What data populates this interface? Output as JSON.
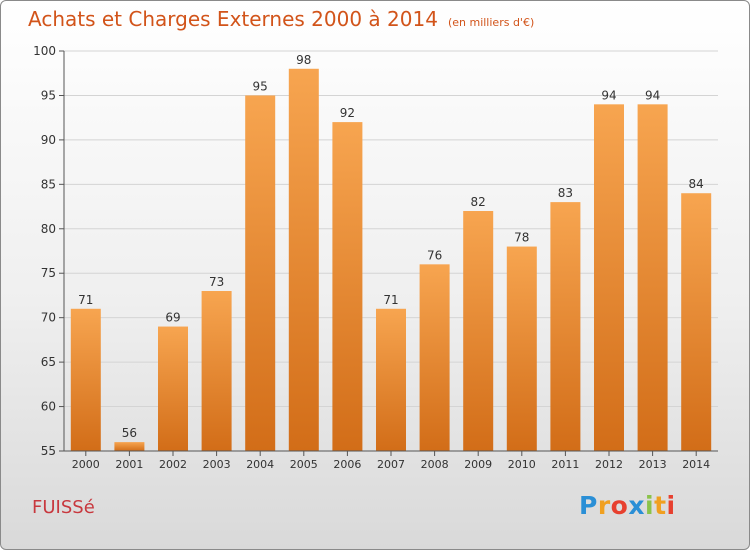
{
  "header": {
    "title": "Achats et Charges Externes 2000 à 2014",
    "subtitle": "(en milliers d'€)"
  },
  "footer": {
    "commune": "FUISSé",
    "logo_letters": [
      "P",
      "r",
      "o",
      "x",
      "i",
      "t",
      "i"
    ]
  },
  "chart_data": {
    "type": "bar",
    "categories": [
      "2000",
      "2001",
      "2002",
      "2003",
      "2004",
      "2005",
      "2006",
      "2007",
      "2008",
      "2009",
      "2010",
      "2011",
      "2012",
      "2013",
      "2014"
    ],
    "values": [
      71,
      56,
      69,
      73,
      95,
      98,
      92,
      71,
      76,
      82,
      78,
      83,
      94,
      94,
      84
    ],
    "ylim": [
      55,
      100
    ],
    "yticks": [
      55,
      60,
      65,
      70,
      75,
      80,
      85,
      90,
      95,
      100
    ],
    "grid": true,
    "bar_color_top": "#f7a550",
    "bar_color_bottom": "#d26d18"
  }
}
